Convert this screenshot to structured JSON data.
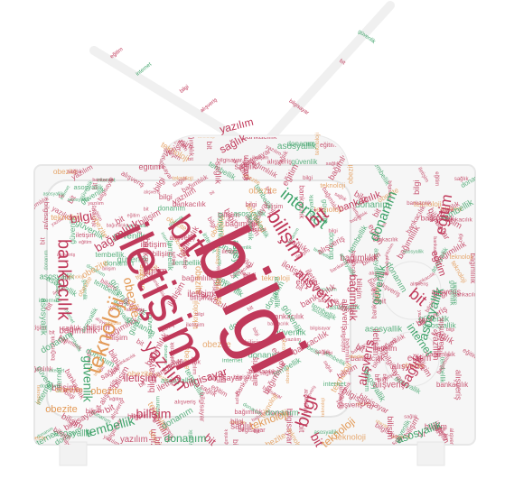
{
  "colors": {
    "red": "#c0395a",
    "green": "#3fa36a",
    "orange": "#e39a57",
    "silhouette": "#f4f4f4",
    "silhouette_stroke": "#e6e6e6",
    "frame_shadow": "#e8e8e8"
  },
  "words": [
    {
      "text": "bilgi",
      "color": "red"
    },
    {
      "text": "iletişim",
      "color": "red"
    },
    {
      "text": "bit",
      "color": "red"
    },
    {
      "text": "teknoloji",
      "color": "orange"
    },
    {
      "text": "bilişim",
      "color": "red"
    },
    {
      "text": "internet",
      "color": "green"
    },
    {
      "text": "bankacılık",
      "color": "red"
    },
    {
      "text": "güvenlik",
      "color": "green"
    },
    {
      "text": "yazılım",
      "color": "red"
    },
    {
      "text": "donanım",
      "color": "green"
    },
    {
      "text": "alışveriş",
      "color": "red"
    },
    {
      "text": "obezite",
      "color": "orange"
    },
    {
      "text": "eğitim",
      "color": "red"
    },
    {
      "text": "sağlık",
      "color": "red"
    },
    {
      "text": "asosyallik",
      "color": "green"
    },
    {
      "text": "bilgisayar",
      "color": "red"
    },
    {
      "text": "tembellik",
      "color": "green"
    },
    {
      "text": "bağımlılık",
      "color": "red"
    }
  ]
}
